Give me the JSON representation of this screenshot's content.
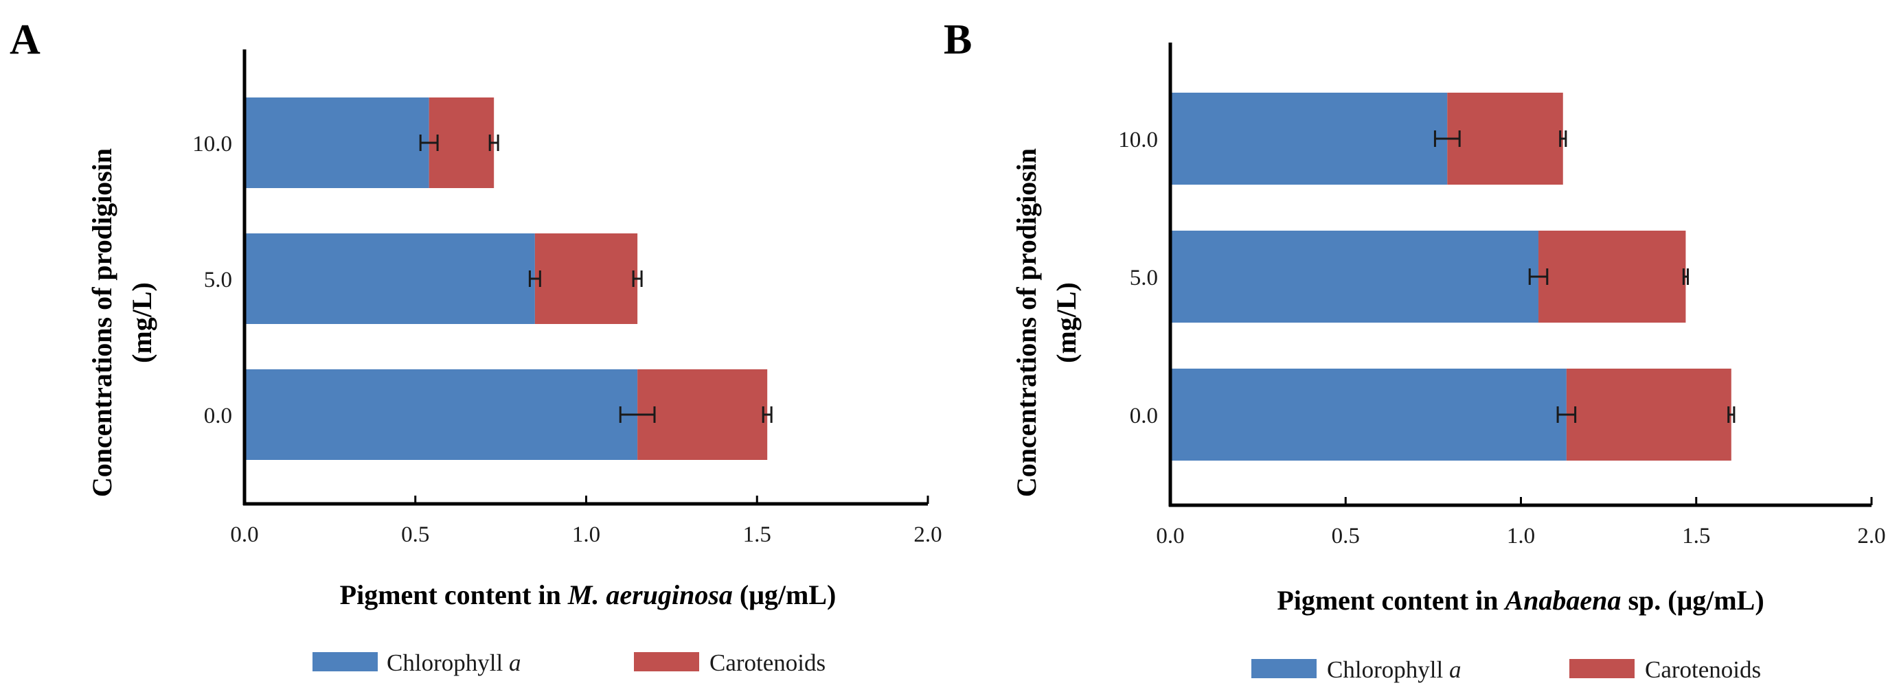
{
  "colors": {
    "chlorophyll": "#4e81bd",
    "carotenoids": "#c0504e",
    "axis": "#000000",
    "errorbar": "#1a1a1a"
  },
  "chart_data": [
    {
      "type": "bar",
      "orientation": "horizontal",
      "stacked": true,
      "panel": "A",
      "ylabel_line1": "Concentrations of prodigiosin",
      "ylabel_line2": "(mg/L)",
      "xlabel_prefix": "Pigment content in ",
      "xlabel_species": "M. aeruginosa",
      "xlabel_suffix": " (μg/mL)",
      "xlim": [
        0,
        2.0
      ],
      "xticks": [
        "0.0",
        "0.5",
        "1.0",
        "1.5",
        "2.0"
      ],
      "categories": [
        "0.0",
        "5.0",
        "10.0"
      ],
      "series": [
        {
          "name": "Chlorophyll",
          "name_italic": "a",
          "values": [
            1.15,
            0.85,
            0.54
          ],
          "errors": [
            0.05,
            0.015,
            0.025
          ]
        },
        {
          "name": "Carotenoids",
          "name_italic": "",
          "values": [
            0.38,
            0.3,
            0.19
          ],
          "errors": [
            0.012,
            0.012,
            0.012
          ]
        }
      ],
      "legend_position": "bottom"
    },
    {
      "type": "bar",
      "orientation": "horizontal",
      "stacked": true,
      "panel": "B",
      "ylabel_line1": "Concentrations of prodigiosin",
      "ylabel_line2": "(mg/L)",
      "xlabel_prefix": "Pigment content in ",
      "xlabel_species": "Anabaena",
      "xlabel_suffix": " sp. (μg/mL)",
      "xlim": [
        0,
        2.0
      ],
      "xticks": [
        "0.0",
        "0.5",
        "1.0",
        "1.5",
        "2.0"
      ],
      "categories": [
        "0.0",
        "5.0",
        "10.0"
      ],
      "series": [
        {
          "name": "Chlorophyll",
          "name_italic": "a",
          "values": [
            1.13,
            1.05,
            0.79
          ],
          "errors": [
            0.025,
            0.025,
            0.035
          ]
        },
        {
          "name": "Carotenoids",
          "name_italic": "",
          "values": [
            0.47,
            0.42,
            0.33
          ],
          "errors": [
            0.008,
            0.006,
            0.008
          ]
        }
      ],
      "legend_position": "bottom"
    }
  ]
}
